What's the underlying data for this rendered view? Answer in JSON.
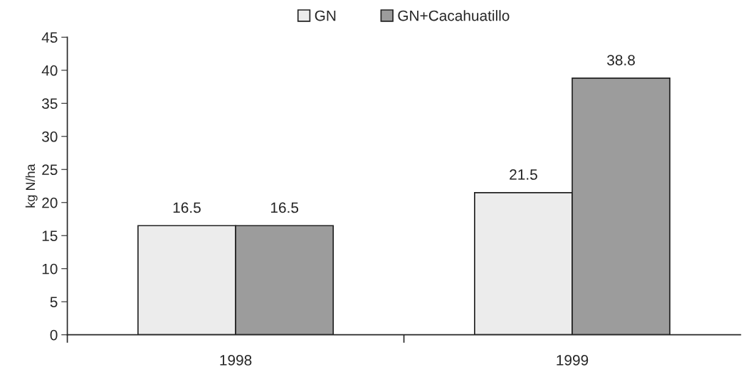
{
  "chart_data": {
    "type": "bar",
    "ylabel": "kg N/ha",
    "categories": [
      "1998",
      "1999"
    ],
    "series": [
      {
        "name": "GN",
        "color": "#ececec",
        "values": [
          16.5,
          21.5
        ]
      },
      {
        "name": "GN+Cacahuatillo",
        "color": "#9c9c9c",
        "values": [
          16.5,
          38.8
        ]
      }
    ],
    "ylim": [
      0,
      45
    ],
    "yticks": [
      0,
      5,
      10,
      15,
      20,
      25,
      30,
      35,
      40,
      45
    ],
    "data_labels": true,
    "legend": "top",
    "grid": false
  }
}
